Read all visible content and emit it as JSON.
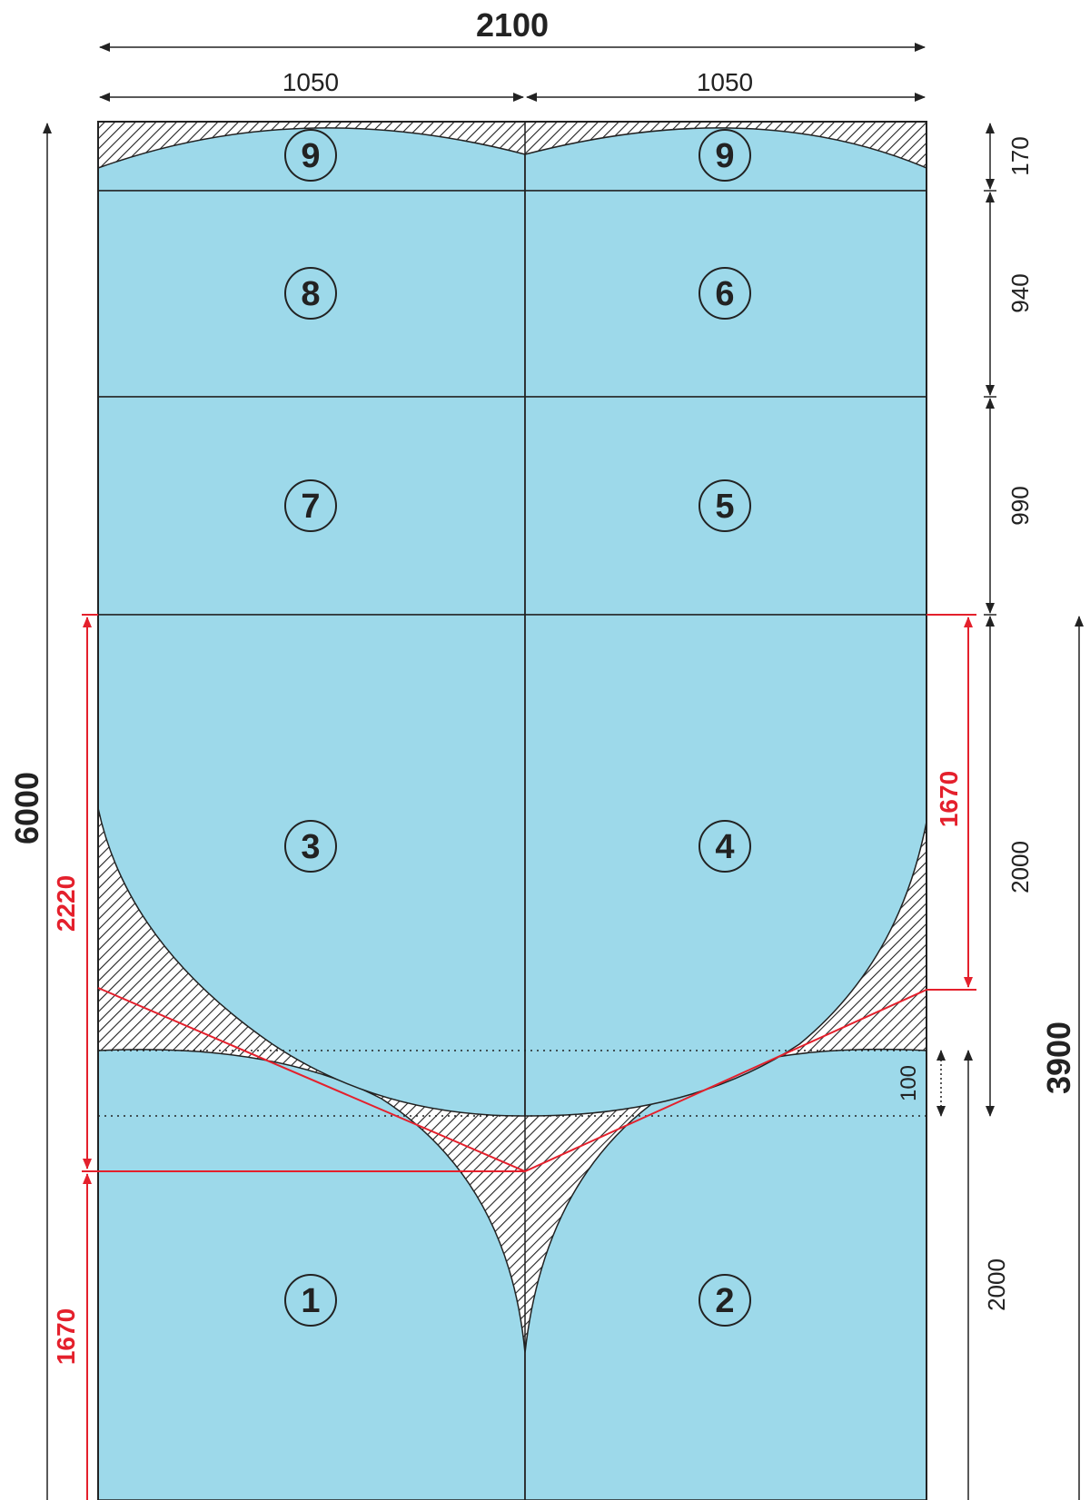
{
  "colors": {
    "panel_fill": "#9dd9ea",
    "outline": "#222222",
    "waste_hatch": "#222222",
    "red_dimension": "#e4202c",
    "background": "#ffffff"
  },
  "dimensions": {
    "total_width": "2100",
    "half_width_left": "1050",
    "half_width_right": "1050",
    "total_height": "6000",
    "right_column": [
      "170",
      "940",
      "990",
      "2000",
      "2000"
    ],
    "overlap": "100",
    "right_total": "3900"
  },
  "red_dimensions": {
    "left_upper": "2220",
    "left_lower": "1670",
    "right_upper": "1670"
  },
  "panels": [
    {
      "id": "9a",
      "label": "9"
    },
    {
      "id": "9b",
      "label": "9"
    },
    {
      "id": "8",
      "label": "8"
    },
    {
      "id": "6",
      "label": "6"
    },
    {
      "id": "7",
      "label": "7"
    },
    {
      "id": "5",
      "label": "5"
    },
    {
      "id": "3",
      "label": "3"
    },
    {
      "id": "4",
      "label": "4"
    },
    {
      "id": "1",
      "label": "1"
    },
    {
      "id": "2",
      "label": "2"
    }
  ]
}
